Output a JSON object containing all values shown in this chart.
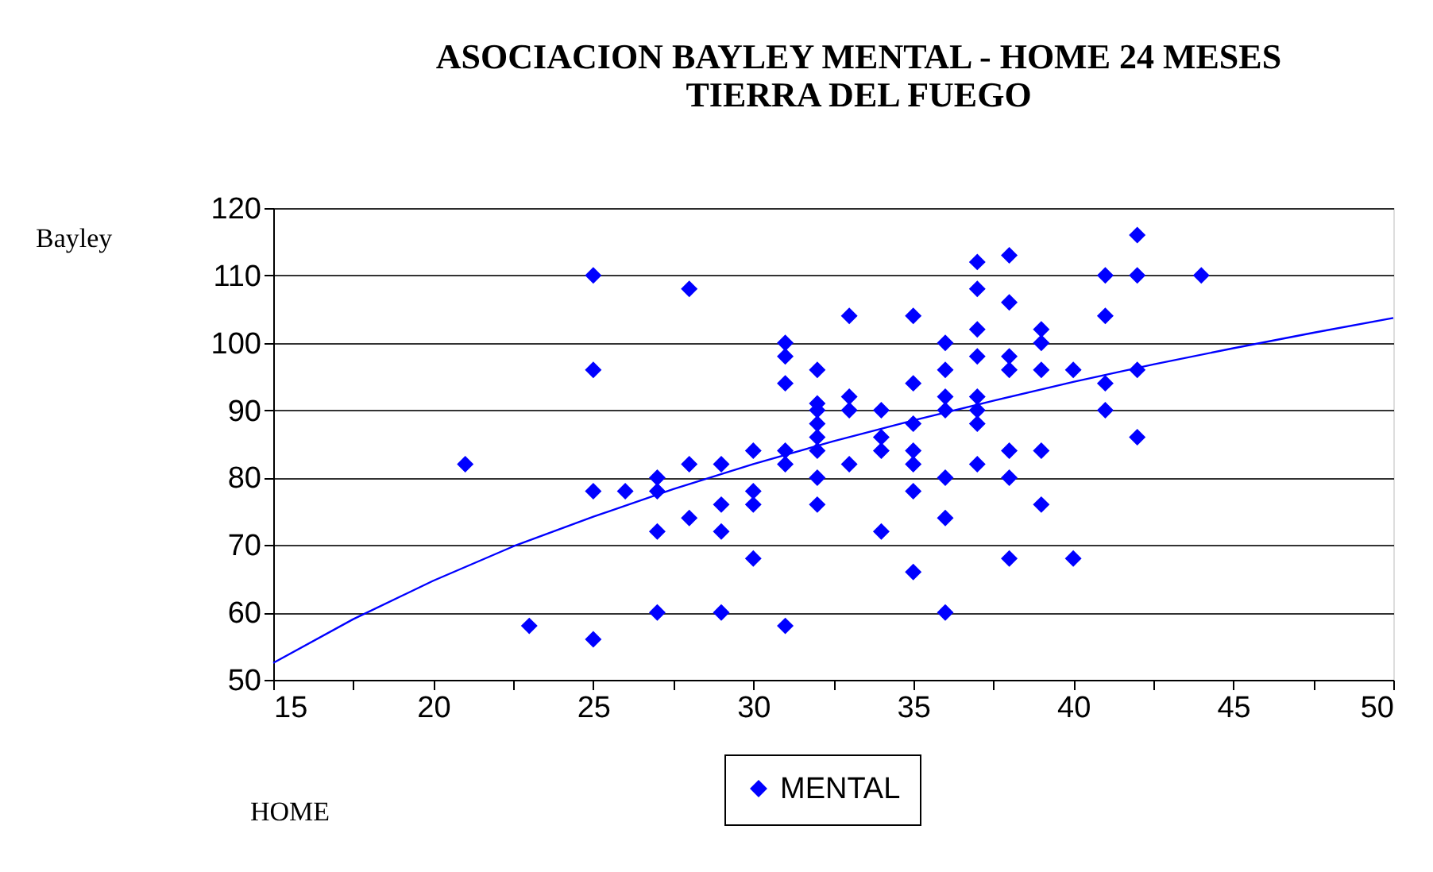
{
  "chart_data": {
    "type": "scatter",
    "title": [
      "ASOCIACION BAYLEY MENTAL - HOME 24 MESES",
      "TIERRA DEL FUEGO"
    ],
    "xlabel": "HOME",
    "ylabel": "Bayley",
    "xlim": [
      15,
      50
    ],
    "ylim": [
      50,
      120
    ],
    "xticks": [
      15,
      {
        "value": 17.5,
        "label": null
      },
      20,
      {
        "value": 22.5,
        "label": null
      },
      25,
      {
        "value": 27.5,
        "label": null
      },
      30,
      {
        "value": 32.5,
        "label": null
      },
      35,
      {
        "value": 37.5,
        "label": null
      },
      40,
      {
        "value": 42.5,
        "label": null
      },
      45,
      {
        "value": 47.5,
        "label": null
      },
      50
    ],
    "yticks": [
      50,
      60,
      70,
      80,
      90,
      100,
      110,
      120
    ],
    "grid": "y",
    "legend": "bottom",
    "marker": "diamond",
    "series": [
      {
        "name": "MENTAL",
        "color": "#0000ff",
        "x": [
          21,
          23,
          25,
          25,
          25,
          25,
          26,
          27,
          27,
          27,
          27,
          28,
          28,
          28,
          29,
          29,
          29,
          29,
          30,
          30,
          30,
          30,
          31,
          31,
          31,
          31,
          31,
          31,
          32,
          32,
          32,
          32,
          32,
          32,
          32,
          32,
          33,
          33,
          33,
          33,
          34,
          34,
          34,
          34,
          35,
          35,
          35,
          35,
          35,
          35,
          35,
          36,
          36,
          36,
          36,
          36,
          36,
          36,
          37,
          37,
          37,
          37,
          37,
          37,
          37,
          37,
          38,
          38,
          38,
          38,
          38,
          38,
          38,
          39,
          39,
          39,
          39,
          39,
          40,
          40,
          41,
          41,
          41,
          41,
          42,
          42,
          42,
          42,
          44
        ],
        "values": [
          82,
          58,
          110,
          96,
          78,
          56,
          78,
          80,
          78,
          72,
          60,
          108,
          82,
          74,
          82,
          76,
          72,
          60,
          84,
          78,
          76,
          68,
          100,
          98,
          94,
          84,
          82,
          58,
          96,
          91,
          90,
          88,
          86,
          84,
          80,
          76,
          104,
          92,
          90,
          82,
          90,
          86,
          84,
          72,
          104,
          94,
          88,
          84,
          82,
          78,
          66,
          100,
          96,
          92,
          90,
          80,
          74,
          60,
          112,
          108,
          102,
          98,
          92,
          90,
          88,
          82,
          113,
          106,
          98,
          96,
          84,
          80,
          68,
          102,
          100,
          96,
          84,
          76,
          96,
          68,
          110,
          104,
          94,
          90,
          116,
          110,
          96,
          86,
          110
        ]
      },
      {
        "color": "#0000ff",
        "type": "line",
        "marker": "none",
        "x": [
          15,
          17.5,
          20,
          22.5,
          25,
          27.5,
          30,
          32.5,
          35,
          37.5,
          40,
          42.5,
          45,
          47.5,
          50
        ],
        "values": [
          52.5,
          59.0,
          64.7,
          69.8,
          74.2,
          78.3,
          82.0,
          85.4,
          88.5,
          91.4,
          94.2,
          96.8,
          99.2,
          101.5,
          103.7
        ]
      }
    ]
  }
}
